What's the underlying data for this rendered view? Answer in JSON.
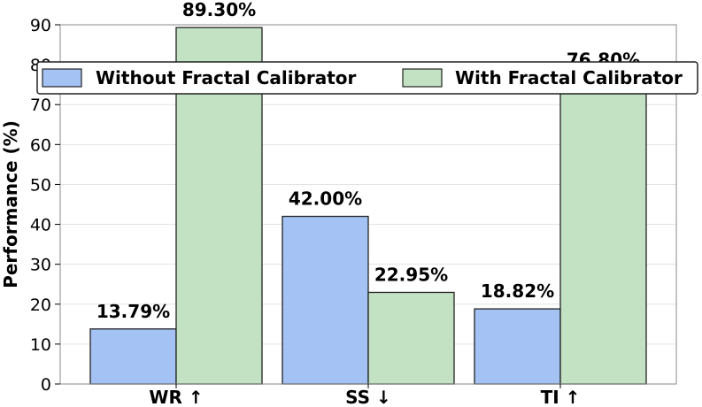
{
  "chart_data": {
    "type": "bar",
    "categories": [
      "WR ↑",
      "SS ↓",
      "TI ↑"
    ],
    "series": [
      {
        "name": "Without Fractal Calibrator",
        "values": [
          13.79,
          42.0,
          18.82
        ],
        "labels": [
          "13.79%",
          "42.00%",
          "18.82%"
        ],
        "color": "#a4c2f4"
      },
      {
        "name": "With Fractal Calibrator",
        "values": [
          89.3,
          22.95,
          76.8
        ],
        "labels": [
          "89.30%",
          "22.95%",
          "76.80%"
        ],
        "color": "#c3e1c3"
      }
    ],
    "ylabel": "Performance (%)",
    "xlabel": "",
    "ylim": [
      0,
      90
    ],
    "yticks": [
      0,
      10,
      20,
      30,
      40,
      50,
      60,
      70,
      80,
      90
    ],
    "grid": true,
    "legend_position": "top",
    "bar_edge_color": "#222222"
  }
}
